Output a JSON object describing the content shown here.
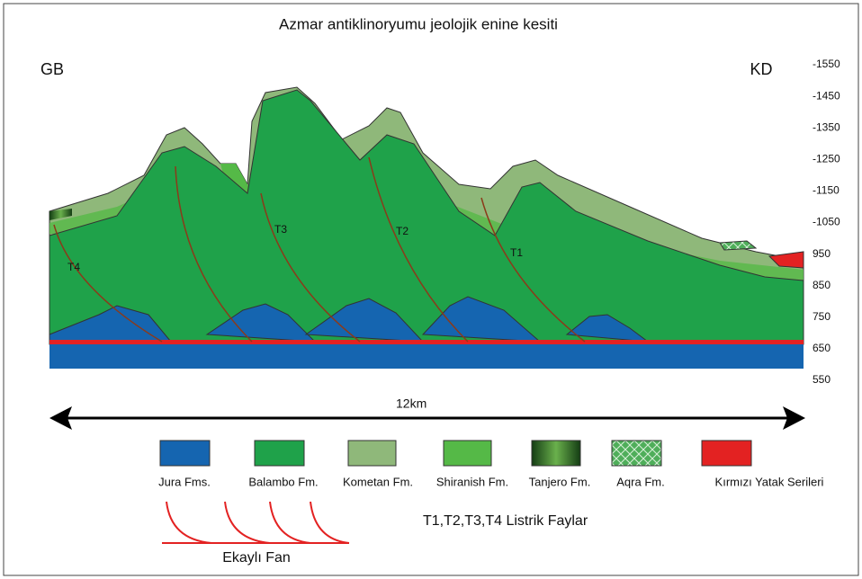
{
  "title": "Azmar antiklinoryumu jeolojik enine kesiti",
  "left_label": "GB",
  "right_label": "KD",
  "scale": [
    "-1550",
    "-1450",
    "-1350",
    "-1250",
    "-1150",
    "-1050",
    "950",
    "850",
    "750",
    "650",
    "550"
  ],
  "faults": [
    "T1",
    "T2",
    "T3",
    "T4"
  ],
  "distance": "12km",
  "legend": [
    "Jura Fms.",
    "Balambo Fm.",
    "Kometan Fm.",
    "Shiranish Fm.",
    "Tanjero Fm.",
    "Aqra Fm.",
    "Kırmızı Yatak Serileri"
  ],
  "fault_note": "T1,T2,T3,T4 Listrik Faylar",
  "fan_label": "Ekaylı Fan"
}
